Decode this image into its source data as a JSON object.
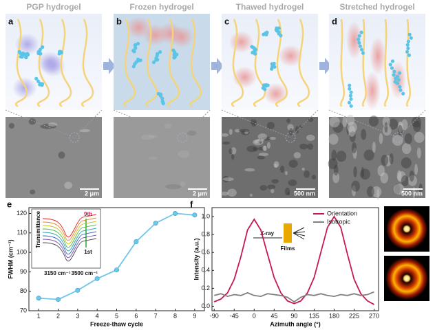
{
  "panels": [
    {
      "label": "a",
      "title": "PGP hydrogel",
      "scale_bar": "2 μm"
    },
    {
      "label": "b",
      "title": "Frozen hydrogel",
      "scale_bar": "2 μm"
    },
    {
      "label": "c",
      "title": "Thawed hydrogel",
      "scale_bar": "500 nm"
    },
    {
      "label": "d",
      "title": "Stretched hydrogel",
      "scale_bar": "500 nm"
    }
  ],
  "chart_data": [
    {
      "type": "line",
      "label": "e",
      "x_label": "Freeze-thaw cycle",
      "y_label": "FWHM (cm⁻¹)",
      "x": [
        1,
        2,
        3,
        4,
        5,
        6,
        7,
        8,
        9
      ],
      "values": [
        76.5,
        75.8,
        80.5,
        86.5,
        91,
        105.5,
        115,
        120,
        119.2
      ],
      "color": "#6ec6e8",
      "markers": true,
      "xlim": [
        0.5,
        9.5
      ],
      "xticks": [
        1,
        2,
        3,
        4,
        5,
        6,
        7,
        8,
        9
      ],
      "ylim": [
        70,
        123
      ],
      "yticks": [
        70,
        80,
        90,
        100,
        110,
        120
      ],
      "inset": {
        "y_label": "Transmittance",
        "top_label": "9th",
        "bottom_label": "1st",
        "x_left": "3150 cm⁻¹",
        "x_right": "3500 cm⁻¹"
      }
    },
    {
      "type": "line",
      "label": "f",
      "x_label": "Azimuth angle (°)",
      "y_label": "Intensity (a.u.)",
      "x": [
        -90,
        -75,
        -60,
        -45,
        -30,
        -15,
        0,
        15,
        30,
        45,
        60,
        75,
        90,
        105,
        120,
        135,
        150,
        165,
        180,
        195,
        210,
        225,
        240,
        255,
        270
      ],
      "series": [
        {
          "name": "Orientation",
          "color": "#c8174f",
          "values": [
            0.05,
            0.08,
            0.15,
            0.3,
            0.55,
            0.85,
            0.97,
            0.85,
            0.58,
            0.32,
            0.15,
            0.06,
            0.03,
            0.06,
            0.15,
            0.32,
            0.6,
            0.88,
            1.0,
            0.88,
            0.58,
            0.3,
            0.14,
            0.06,
            0.02
          ]
        },
        {
          "name": "Isotropic",
          "color": "#808080",
          "values": [
            0.12,
            0.14,
            0.11,
            0.13,
            0.12,
            0.15,
            0.12,
            0.11,
            0.14,
            0.13,
            0.12,
            0.1,
            0.05,
            0.1,
            0.13,
            0.12,
            0.14,
            0.12,
            0.11,
            0.13,
            0.12,
            0.14,
            0.12,
            0.13,
            0.16
          ]
        }
      ],
      "legend": "upper right",
      "xlim": [
        -95,
        280
      ],
      "xticks": [
        -90,
        -45,
        0,
        45,
        90,
        135,
        180,
        225,
        270
      ],
      "ylim": [
        -0.05,
        1.1
      ],
      "yticks": [
        {
          "value": 0,
          "label": "0.0"
        },
        0.2,
        0.4,
        0.6,
        0.8,
        {
          "value": 1,
          "label": "1.0"
        }
      ],
      "inset": {
        "beam": "X-ray",
        "sample": "Films"
      }
    }
  ]
}
